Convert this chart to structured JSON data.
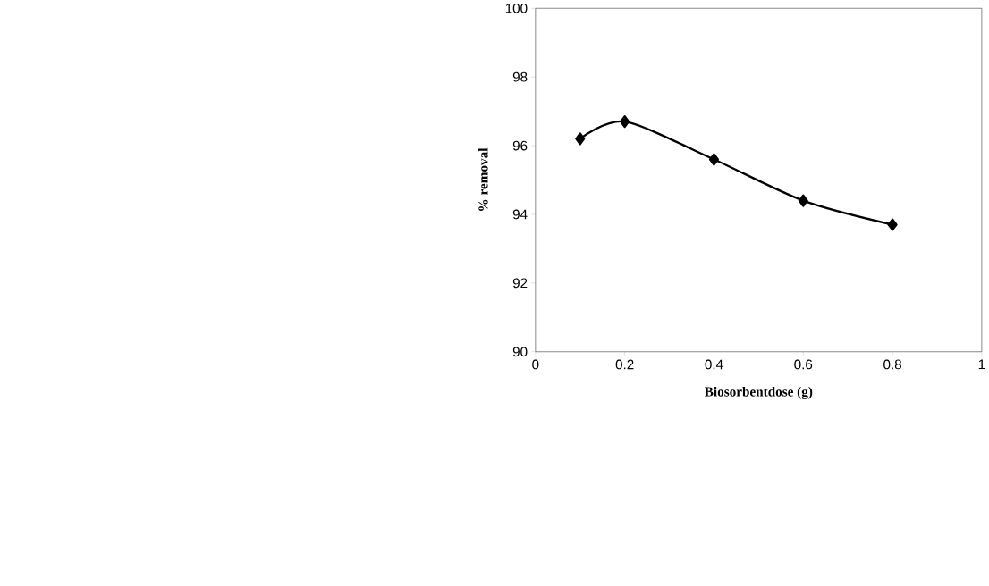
{
  "chart_data": {
    "type": "line",
    "xlabel": "Biosorbentdose (g)",
    "ylabel": "% removal",
    "x": [
      0.1,
      0.2,
      0.4,
      0.6,
      0.8
    ],
    "series": [
      {
        "color": "#000000",
        "values": [
          96.2,
          96.7,
          95.6,
          94.4,
          93.7
        ]
      }
    ],
    "xlim": [
      0,
      1
    ],
    "ylim": [
      90,
      100
    ],
    "xticks": [
      0,
      0.2,
      0.4,
      0.6,
      0.8,
      1
    ],
    "yticks": [
      90,
      92,
      94,
      96,
      98,
      100
    ],
    "marker": "diamond",
    "line_style": "solid"
  }
}
